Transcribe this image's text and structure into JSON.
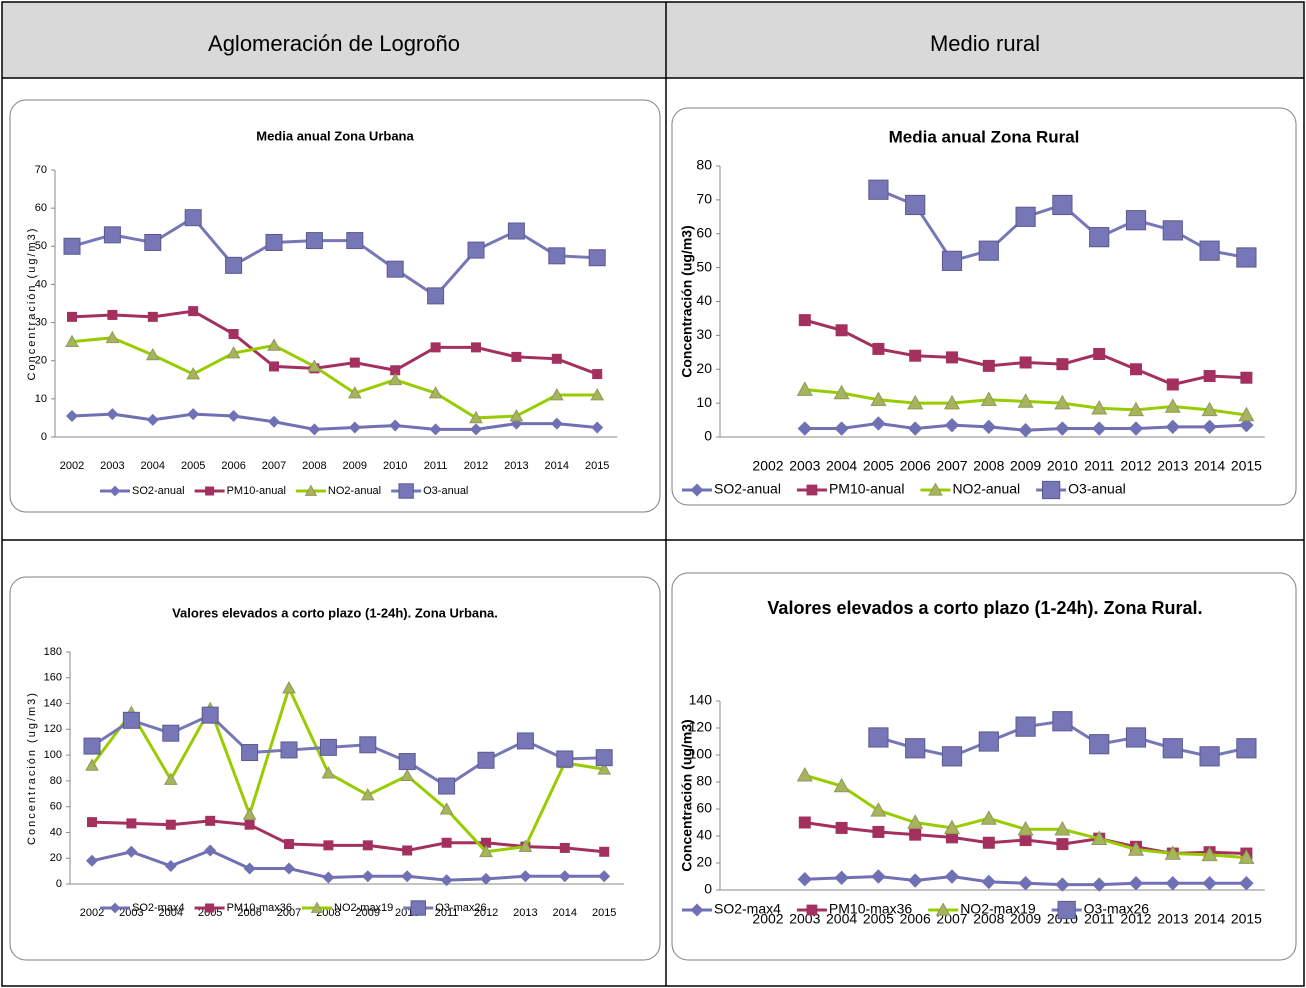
{
  "table": {
    "headers": [
      "Aglomeración de Logroño",
      "Medio rural"
    ]
  },
  "chart_data": [
    {
      "type": "line",
      "title": "Media anual Zona Urbana",
      "y_label": "Concentración (ug/m3)",
      "categories": [
        "2002",
        "2003",
        "2004",
        "2005",
        "2006",
        "2007",
        "2008",
        "2009",
        "2010",
        "2011",
        "2012",
        "2013",
        "2014",
        "2015"
      ],
      "ylim": [
        0,
        70
      ],
      "yticks": [
        0,
        10,
        20,
        30,
        40,
        50,
        60,
        70
      ],
      "series": [
        {
          "name": "SO2-anual",
          "color": "#7070b4",
          "marker": "diamond",
          "values": [
            5.5,
            6,
            4.5,
            6,
            5.5,
            4,
            2,
            2.5,
            3,
            2,
            2,
            3.5,
            3.5,
            2.5
          ]
        },
        {
          "name": "PM10-anual",
          "color": "#a3305e",
          "marker": "square",
          "values": [
            31.5,
            32,
            31.5,
            33,
            27,
            18.5,
            18,
            19.5,
            17.5,
            23.5,
            23.5,
            21,
            20.5,
            16.5
          ]
        },
        {
          "name": "NO2-anual",
          "color": "#99cc00",
          "marker": "triangle",
          "values": [
            25,
            26,
            21.5,
            16.5,
            22,
            24,
            18.5,
            11.5,
            15,
            11.5,
            5,
            5.5,
            11,
            11
          ]
        },
        {
          "name": "O3-anual",
          "color": "#7777b8",
          "marker": "bigsquare",
          "values": [
            50,
            53,
            51,
            57.5,
            45,
            51,
            51.5,
            51.5,
            44,
            37,
            49,
            54,
            47.5,
            47
          ]
        }
      ]
    },
    {
      "type": "line",
      "title": "Media anual Zona Rural",
      "y_label": "Concentración (ug/m3)",
      "categories": [
        "2002",
        "2003",
        "2004",
        "2005",
        "2006",
        "2007",
        "2008",
        "2009",
        "2010",
        "2011",
        "2012",
        "2013",
        "2014",
        "2015"
      ],
      "ylim": [
        0,
        80
      ],
      "yticks": [
        0,
        10,
        20,
        30,
        40,
        50,
        60,
        70,
        80
      ],
      "series": [
        {
          "name": "SO2-anual",
          "color": "#7070b4",
          "marker": "diamond",
          "values": [
            null,
            2.5,
            2.5,
            4,
            2.5,
            3.5,
            3,
            2,
            2.5,
            2.5,
            2.5,
            3,
            3,
            3.5
          ]
        },
        {
          "name": "PM10-anual",
          "color": "#a3305e",
          "marker": "square",
          "values": [
            null,
            34.5,
            31.5,
            26,
            24,
            23.5,
            21,
            22,
            21.5,
            24.5,
            20,
            15.5,
            18,
            17.5
          ]
        },
        {
          "name": "NO2-anual",
          "color": "#99cc00",
          "marker": "triangle",
          "values": [
            null,
            14,
            13,
            11,
            10,
            10,
            11,
            10.5,
            10,
            8.5,
            8,
            9,
            8,
            6.5
          ]
        },
        {
          "name": "O3-anual",
          "color": "#7777b8",
          "marker": "bigsquare",
          "values": [
            null,
            null,
            null,
            73,
            68.5,
            52,
            55,
            65,
            68.5,
            59,
            64,
            61,
            55,
            53
          ]
        }
      ]
    },
    {
      "type": "line",
      "title": "Valores elevados a corto plazo (1-24h). Zona Urbana.",
      "y_label": "Concentración (ug/m3)",
      "categories": [
        "2002",
        "2003",
        "2004",
        "2005",
        "2006",
        "2007",
        "2008",
        "2009",
        "2010",
        "2011",
        "2012",
        "2013",
        "2014",
        "2015"
      ],
      "ylim": [
        0,
        180
      ],
      "yticks": [
        0,
        20,
        40,
        60,
        80,
        100,
        120,
        140,
        160,
        180
      ],
      "series": [
        {
          "name": "SO2-max4",
          "color": "#7070b4",
          "marker": "diamond",
          "values": [
            18,
            25,
            14,
            26,
            12,
            12,
            5,
            6,
            6,
            3,
            4,
            6,
            6,
            6
          ]
        },
        {
          "name": "PM10-max36",
          "color": "#a3305e",
          "marker": "square",
          "values": [
            48,
            47,
            46,
            49,
            46,
            31,
            30,
            30,
            26,
            32,
            32,
            29,
            28,
            25
          ]
        },
        {
          "name": "NO2-max19",
          "color": "#99cc00",
          "marker": "triangle",
          "values": [
            92,
            133,
            81,
            136,
            54,
            152,
            86,
            69,
            84,
            58,
            25,
            29,
            94,
            89
          ]
        },
        {
          "name": "O3-max26",
          "color": "#7777b8",
          "marker": "bigsquare",
          "values": [
            107,
            127,
            117,
            131,
            102,
            104,
            106,
            108,
            95,
            76,
            96,
            111,
            97,
            98
          ]
        }
      ]
    },
    {
      "type": "line",
      "title": "Valores elevados a corto plazo (1-24h). Zona Rural.",
      "y_label": "Concentración (ug/m3)",
      "categories": [
        "2002",
        "2003",
        "2004",
        "2005",
        "2006",
        "2007",
        "2008",
        "2009",
        "2010",
        "2011",
        "2012",
        "2013",
        "2014",
        "2015"
      ],
      "ylim": [
        0,
        140
      ],
      "yticks": [
        0,
        20,
        40,
        60,
        80,
        100,
        120,
        140
      ],
      "series": [
        {
          "name": "SO2-max4",
          "color": "#7070b4",
          "marker": "diamond",
          "values": [
            null,
            8,
            9,
            10,
            7,
            10,
            6,
            5,
            4,
            4,
            5,
            5,
            5,
            5
          ]
        },
        {
          "name": "PM10-max36",
          "color": "#a3305e",
          "marker": "square",
          "values": [
            null,
            50,
            46,
            43,
            41,
            39,
            35,
            37,
            34,
            38,
            32,
            27,
            28,
            27
          ]
        },
        {
          "name": "NO2-max19",
          "color": "#99cc00",
          "marker": "triangle",
          "values": [
            null,
            85,
            77,
            59,
            50,
            46,
            53,
            45,
            45,
            38,
            30,
            27,
            26,
            24
          ]
        },
        {
          "name": "O3-max26",
          "color": "#7777b8",
          "marker": "bigsquare",
          "values": [
            null,
            null,
            null,
            113,
            105,
            99,
            110,
            121,
            125,
            108,
            113,
            105,
            99,
            105
          ]
        }
      ]
    }
  ]
}
